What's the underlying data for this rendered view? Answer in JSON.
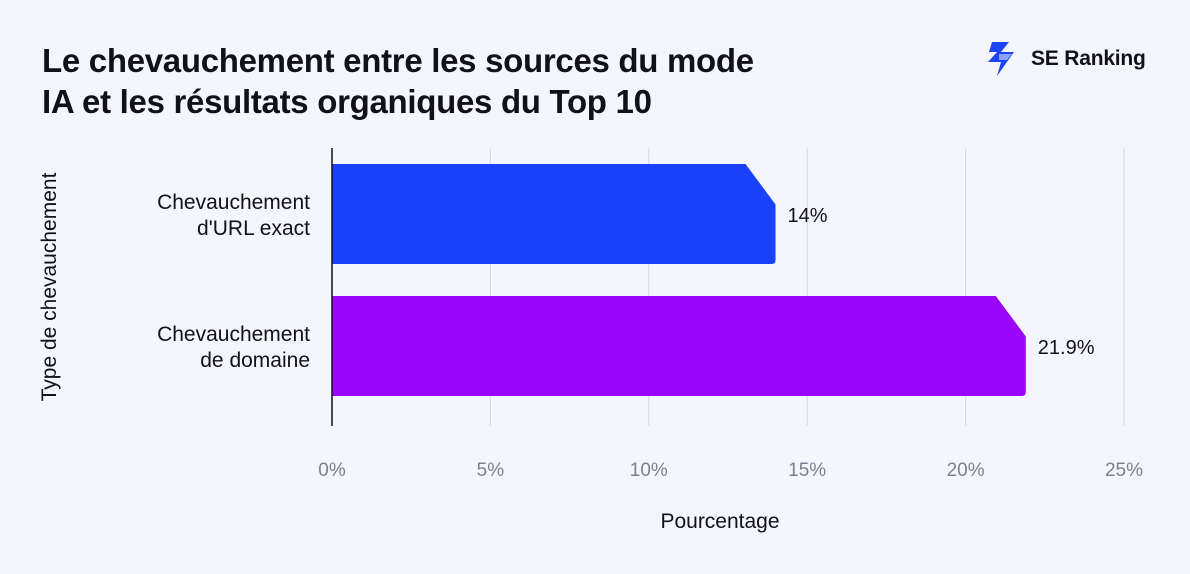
{
  "title_lines": [
    "Le chevauchement entre les sources du mode",
    "IA et les résultats organiques du Top 10"
  ],
  "brand": {
    "name": "SE Ranking",
    "icon": "se-ranking-logo-icon",
    "color": "#1d44f5"
  },
  "chart_data": {
    "type": "bar",
    "orientation": "horizontal",
    "categories": [
      [
        "Chevauchement",
        "d'URL exact"
      ],
      [
        "Chevauchement",
        "de domaine"
      ]
    ],
    "values": [
      14,
      21.9
    ],
    "value_labels": [
      "14%",
      "21.9%"
    ],
    "colors": [
      "#1a41fb",
      "#9a05fb"
    ],
    "xlabel": "Pourcentage",
    "ylabel": "Type de chevauchement",
    "xlim": [
      0,
      25
    ],
    "xticks": [
      0,
      5,
      10,
      15,
      20,
      25
    ],
    "xtick_labels": [
      "0%",
      "5%",
      "10%",
      "15%",
      "20%",
      "25%"
    ],
    "grid": "vertical",
    "legend": "none"
  }
}
